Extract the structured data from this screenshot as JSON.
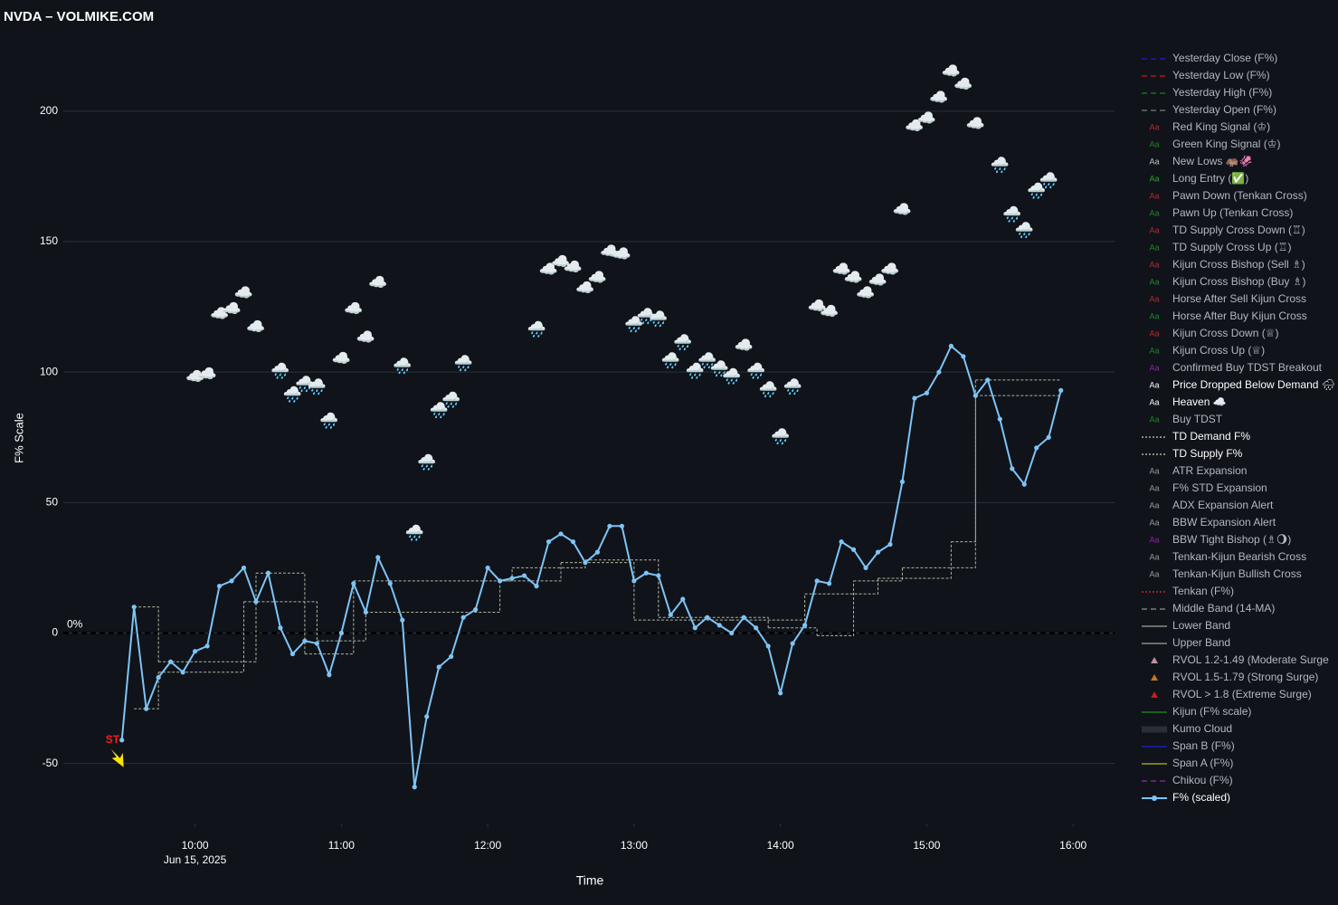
{
  "chart_data": {
    "type": "line",
    "title": "NVDA – VOLMIKE.COM",
    "x_label": "Time",
    "y_label": "F% Scale",
    "x_sublabel": {
      "value": 600,
      "label": "Jun 15, 2025"
    },
    "xlim": [
      546,
      977
    ],
    "ylim": [
      -73,
      227
    ],
    "xticks": [
      {
        "value": 600,
        "label": "10:00"
      },
      {
        "value": 660,
        "label": "11:00"
      },
      {
        "value": 720,
        "label": "12:00"
      },
      {
        "value": 780,
        "label": "13:00"
      },
      {
        "value": 840,
        "label": "14:00"
      },
      {
        "value": 900,
        "label": "15:00"
      },
      {
        "value": 960,
        "label": "16:00"
      }
    ],
    "yticks": [
      -50,
      0,
      50,
      100,
      150,
      200
    ],
    "grid": true,
    "zero_line": {
      "value": 0,
      "label": "0%"
    },
    "legend": "outside-right",
    "swatch_text": "Aa",
    "annotation": {
      "text": "ST",
      "x": 570,
      "y": -41,
      "color": "#ff1a1a",
      "arrow_color": "#f5e50a"
    },
    "series": [
      {
        "name": "Yesterday Close (F%)",
        "color": "#1c1ca8",
        "style": "dash"
      },
      {
        "name": "Yesterday Low (F%)",
        "color": "#b01818",
        "style": "dash"
      },
      {
        "name": "Yesterday High (F%)",
        "color": "#18701c",
        "style": "dash"
      },
      {
        "name": "Yesterday Open (F%)",
        "color": "#6a6a6a",
        "style": "dash"
      },
      {
        "name": "Red King Signal (♔)",
        "color": "#c0282c",
        "style": "text"
      },
      {
        "name": "Green King Signal (♔)",
        "color": "#1c8a24",
        "style": "text"
      },
      {
        "name": "New Lows 🦛🦑",
        "color": "#c8c8c8",
        "style": "text"
      },
      {
        "name": "Long Entry (✅)",
        "color": "#1fae2a",
        "style": "text"
      },
      {
        "name": "Pawn Down (Tenkan Cross)",
        "color": "#c0282c",
        "style": "text"
      },
      {
        "name": "Pawn Up (Tenkan Cross)",
        "color": "#1c8a24",
        "style": "text"
      },
      {
        "name": "TD Supply Cross Down (♖)",
        "color": "#c0282c",
        "style": "text"
      },
      {
        "name": "TD Supply Cross Up (♖)",
        "color": "#1c8a24",
        "style": "text"
      },
      {
        "name": "Kijun Cross Bishop (Sell ♗)",
        "color": "#c0282c",
        "style": "text"
      },
      {
        "name": "Kijun Cross Bishop (Buy ♗)",
        "color": "#1c8a24",
        "style": "text"
      },
      {
        "name": "Horse After Sell Kijun Cross",
        "color": "#c0282c",
        "style": "text"
      },
      {
        "name": "Horse After Buy Kijun Cross",
        "color": "#1c8a24",
        "style": "text"
      },
      {
        "name": "Kijun Cross Down (♕)",
        "color": "#c0282c",
        "style": "text"
      },
      {
        "name": "Kijun Cross Up (♕)",
        "color": "#1c8a24",
        "style": "text"
      },
      {
        "name": "Confirmed Buy TDST Breakout",
        "color": "#8a2aa0",
        "style": "text"
      },
      {
        "name": "Price Dropped Below Demand 🌧",
        "color": "#ffffff",
        "style": "text",
        "active": true,
        "type": "emoji",
        "marker": "🌧️",
        "x": [
          635,
          640,
          645,
          650,
          655,
          685,
          690,
          695,
          700,
          705,
          710,
          740,
          780,
          785,
          790,
          795,
          800,
          805,
          810,
          815,
          820,
          830,
          835,
          840,
          845,
          930,
          935,
          940,
          945,
          950
        ],
        "values": [
          100,
          91,
          95,
          94,
          81,
          102,
          38,
          65,
          85,
          89,
          103,
          116,
          118,
          121,
          120,
          104,
          111,
          100,
          104,
          101,
          98,
          100,
          93,
          75,
          94,
          179,
          160,
          154,
          169,
          173
        ]
      },
      {
        "name": "Heaven ☁️",
        "color": "#ffffff",
        "style": "text",
        "active": true,
        "type": "emoji",
        "marker": "☁️",
        "x": [
          600,
          605,
          610,
          615,
          620,
          625,
          660,
          665,
          670,
          675,
          745,
          750,
          755,
          760,
          765,
          770,
          775,
          825,
          855,
          860,
          865,
          870,
          875,
          880,
          885,
          890,
          895,
          900,
          905,
          910,
          915,
          920
        ],
        "values": [
          98,
          99,
          122,
          124,
          130,
          117,
          105,
          124,
          113,
          134,
          139,
          142,
          140,
          132,
          136,
          146,
          145,
          110,
          125,
          123,
          139,
          136,
          130,
          135,
          139,
          162,
          194,
          197,
          205,
          215,
          210,
          195
        ]
      },
      {
        "name": "Buy TDST",
        "color": "#1c8a24",
        "style": "text"
      },
      {
        "name": "TD Demand F%",
        "color": "#a9b89a",
        "style": "dot",
        "active": true,
        "type": "step",
        "x": [
          575,
          585,
          620,
          650,
          670,
          725,
          750,
          780,
          820,
          850,
          880,
          910,
          920,
          955
        ],
        "values": [
          -29,
          -15,
          12,
          -3,
          8,
          20,
          27,
          5,
          5,
          15,
          21,
          35,
          91,
          91
        ]
      },
      {
        "name": "TD Supply F%",
        "color": "#a9b89a",
        "style": "dot",
        "active": true,
        "type": "step",
        "x": [
          575,
          585,
          625,
          645,
          665,
          730,
          760,
          790,
          835,
          855,
          870,
          890,
          920,
          955
        ],
        "values": [
          10,
          -11,
          23,
          -8,
          20,
          25,
          28,
          6,
          2,
          -1,
          20,
          25,
          97,
          97
        ]
      },
      {
        "name": "ATR Expansion",
        "color": "#9a9a9a",
        "style": "text"
      },
      {
        "name": "F% STD Expansion",
        "color": "#9a9a9a",
        "style": "text"
      },
      {
        "name": "ADX Expansion Alert",
        "color": "#9a9a9a",
        "style": "text"
      },
      {
        "name": "BBW Expansion Alert",
        "color": "#9a9a9a",
        "style": "text"
      },
      {
        "name": "BBW Tight Bishop (♗🌖)",
        "color": "#8a2aa0",
        "style": "text"
      },
      {
        "name": "Tenkan-Kijun Bearish Cross",
        "color": "#9a9a9a",
        "style": "text"
      },
      {
        "name": "Tenkan-Kijun Bullish Cross",
        "color": "#9a9a9a",
        "style": "text"
      },
      {
        "name": "Tenkan (F%)",
        "color": "#c0282c",
        "style": "dot"
      },
      {
        "name": "Middle Band (14-MA)",
        "color": "#7a7a7a",
        "style": "dash"
      },
      {
        "name": "Lower Band",
        "color": "#8a8a8a",
        "style": "line"
      },
      {
        "name": "Upper Band",
        "color": "#8a8a8a",
        "style": "line"
      },
      {
        "name": "RVOL 1.2-1.49 (Moderate Surge",
        "color": "#c0909a",
        "style": "triangle"
      },
      {
        "name": "RVOL 1.5-1.79 (Strong Surge)",
        "color": "#c0781c",
        "style": "triangle"
      },
      {
        "name": "RVOL > 1.8 (Extreme Surge)",
        "color": "#c81c1c",
        "style": "triangle"
      },
      {
        "name": "Kijun (F% scale)",
        "color": "#1c7a1c",
        "style": "line"
      },
      {
        "name": "Kumo Cloud",
        "color": "#2a2e36",
        "style": "thick"
      },
      {
        "name": "Span B (F%)",
        "color": "#1c1cb8",
        "style": "line"
      },
      {
        "name": "Span A (F%)",
        "color": "#a09a1c",
        "style": "line"
      },
      {
        "name": "Chikou (F%)",
        "color": "#7a2a8a",
        "style": "dash"
      },
      {
        "name": "F% (scaled)",
        "color": "#7ec4f5",
        "style": "marker-line",
        "active": true,
        "type": "line",
        "x": [
          570,
          575,
          580,
          585,
          590,
          595,
          600,
          605,
          610,
          615,
          620,
          625,
          630,
          635,
          640,
          645,
          650,
          655,
          660,
          665,
          670,
          675,
          680,
          685,
          690,
          695,
          700,
          705,
          710,
          715,
          720,
          725,
          730,
          735,
          740,
          745,
          750,
          755,
          760,
          765,
          770,
          775,
          780,
          785,
          790,
          795,
          800,
          805,
          810,
          815,
          820,
          825,
          830,
          835,
          840,
          845,
          850,
          855,
          860,
          865,
          870,
          875,
          880,
          885,
          890,
          895,
          900,
          905,
          910,
          915,
          920,
          925,
          930,
          935,
          940,
          945,
          950,
          955
        ],
        "values": [
          -41,
          10,
          -29,
          -17,
          -11,
          -15,
          -7,
          -5,
          18,
          20,
          25,
          12,
          23,
          2,
          -8,
          -3,
          -4,
          -16,
          0,
          19,
          8,
          29,
          19,
          5,
          -59,
          -32,
          -13,
          -9,
          6,
          9,
          25,
          20,
          21,
          22,
          18,
          35,
          38,
          35,
          27,
          31,
          41,
          41,
          20,
          23,
          22,
          7,
          13,
          2,
          6,
          3,
          0,
          6,
          2,
          -5,
          -23,
          -4,
          3,
          20,
          19,
          35,
          32,
          25,
          31,
          34,
          58,
          90,
          92,
          100,
          110,
          106,
          91,
          97,
          82,
          63,
          57,
          71,
          75,
          93
        ]
      }
    ]
  }
}
